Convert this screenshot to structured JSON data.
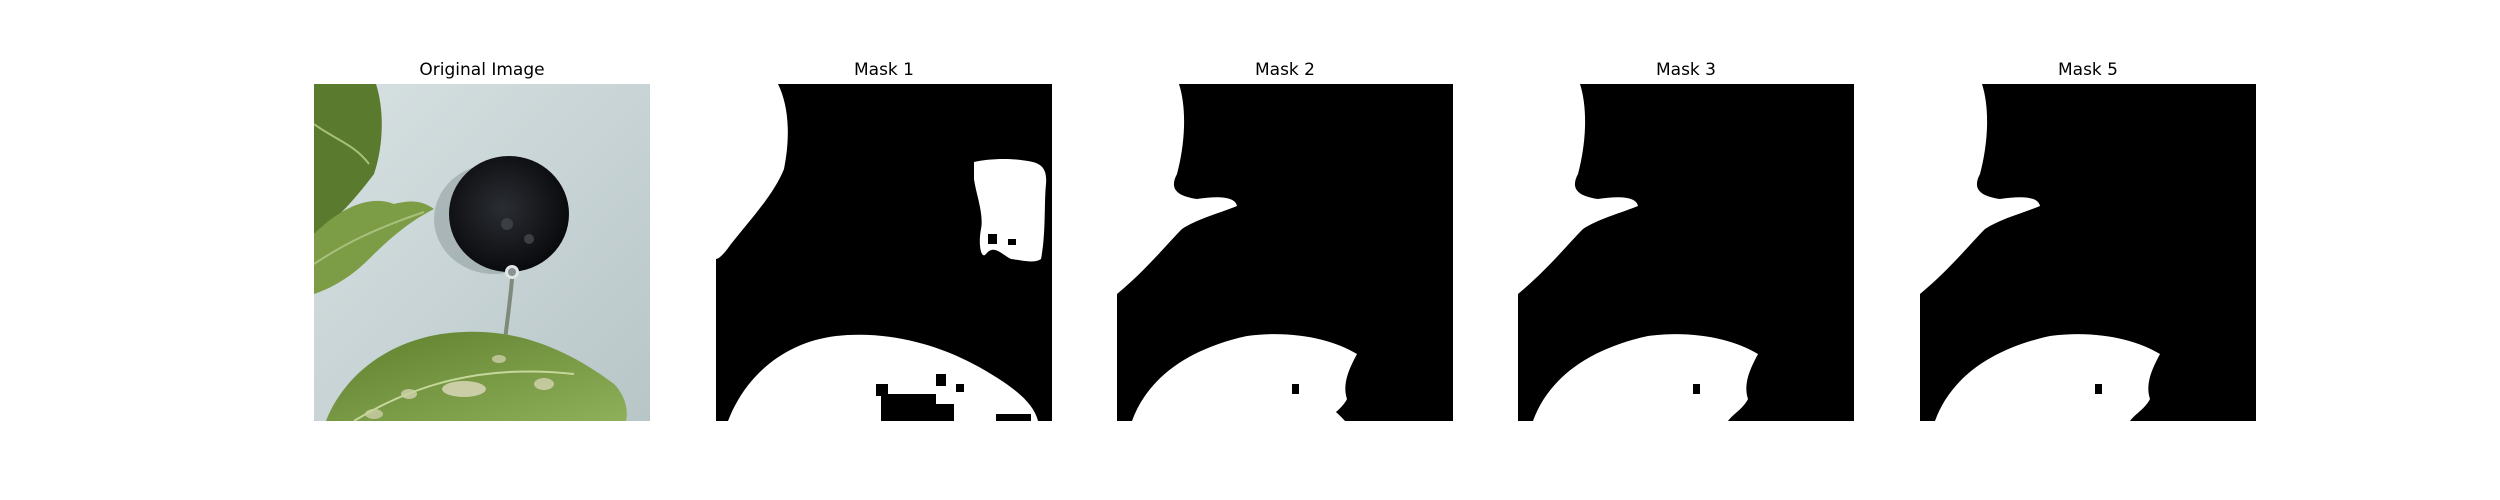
{
  "figure": {
    "panels": [
      {
        "title": "Original Image",
        "kind": "photo"
      },
      {
        "title": "Mask 1",
        "kind": "mask"
      },
      {
        "title": "Mask 2",
        "kind": "mask"
      },
      {
        "title": "Mask 3",
        "kind": "mask"
      },
      {
        "title": "Mask 5",
        "kind": "mask"
      }
    ]
  },
  "colors": {
    "background": "#ffffff",
    "mask_fg": "#ffffff",
    "mask_bg": "#000000",
    "leaf": "#7a9a4f",
    "wall": "#c9d6d8",
    "dark_object": "#14161a"
  }
}
